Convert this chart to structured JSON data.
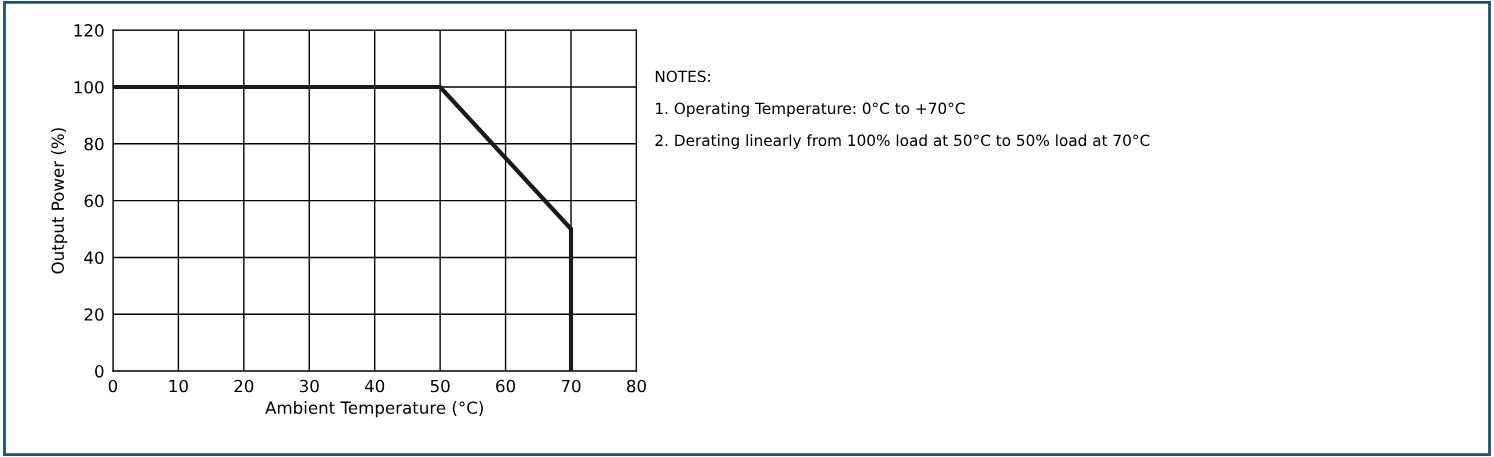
{
  "chart_data": {
    "type": "line",
    "xlabel": "Ambient Temperature (°C)",
    "ylabel": "Output Power (%)",
    "x": [
      0,
      50,
      70,
      70
    ],
    "series": [
      {
        "color": "#1a1a1a",
        "values": [
          100,
          100,
          50,
          0
        ]
      }
    ],
    "xlim": [
      0,
      80
    ],
    "xticks": [
      0,
      10,
      20,
      30,
      40,
      50,
      60,
      70,
      80
    ],
    "ylim": [
      0,
      120
    ],
    "yticks": [
      0,
      20,
      40,
      60,
      80,
      100,
      120
    ],
    "grid": true,
    "marker": "none",
    "line_style": "solid",
    "annotations": [
      "NOTES:",
      "1. Operating Temperature: 0°C to +70°C",
      "2. Derating linearly from 100% load at 50°C to 50% load at 70°C"
    ]
  }
}
